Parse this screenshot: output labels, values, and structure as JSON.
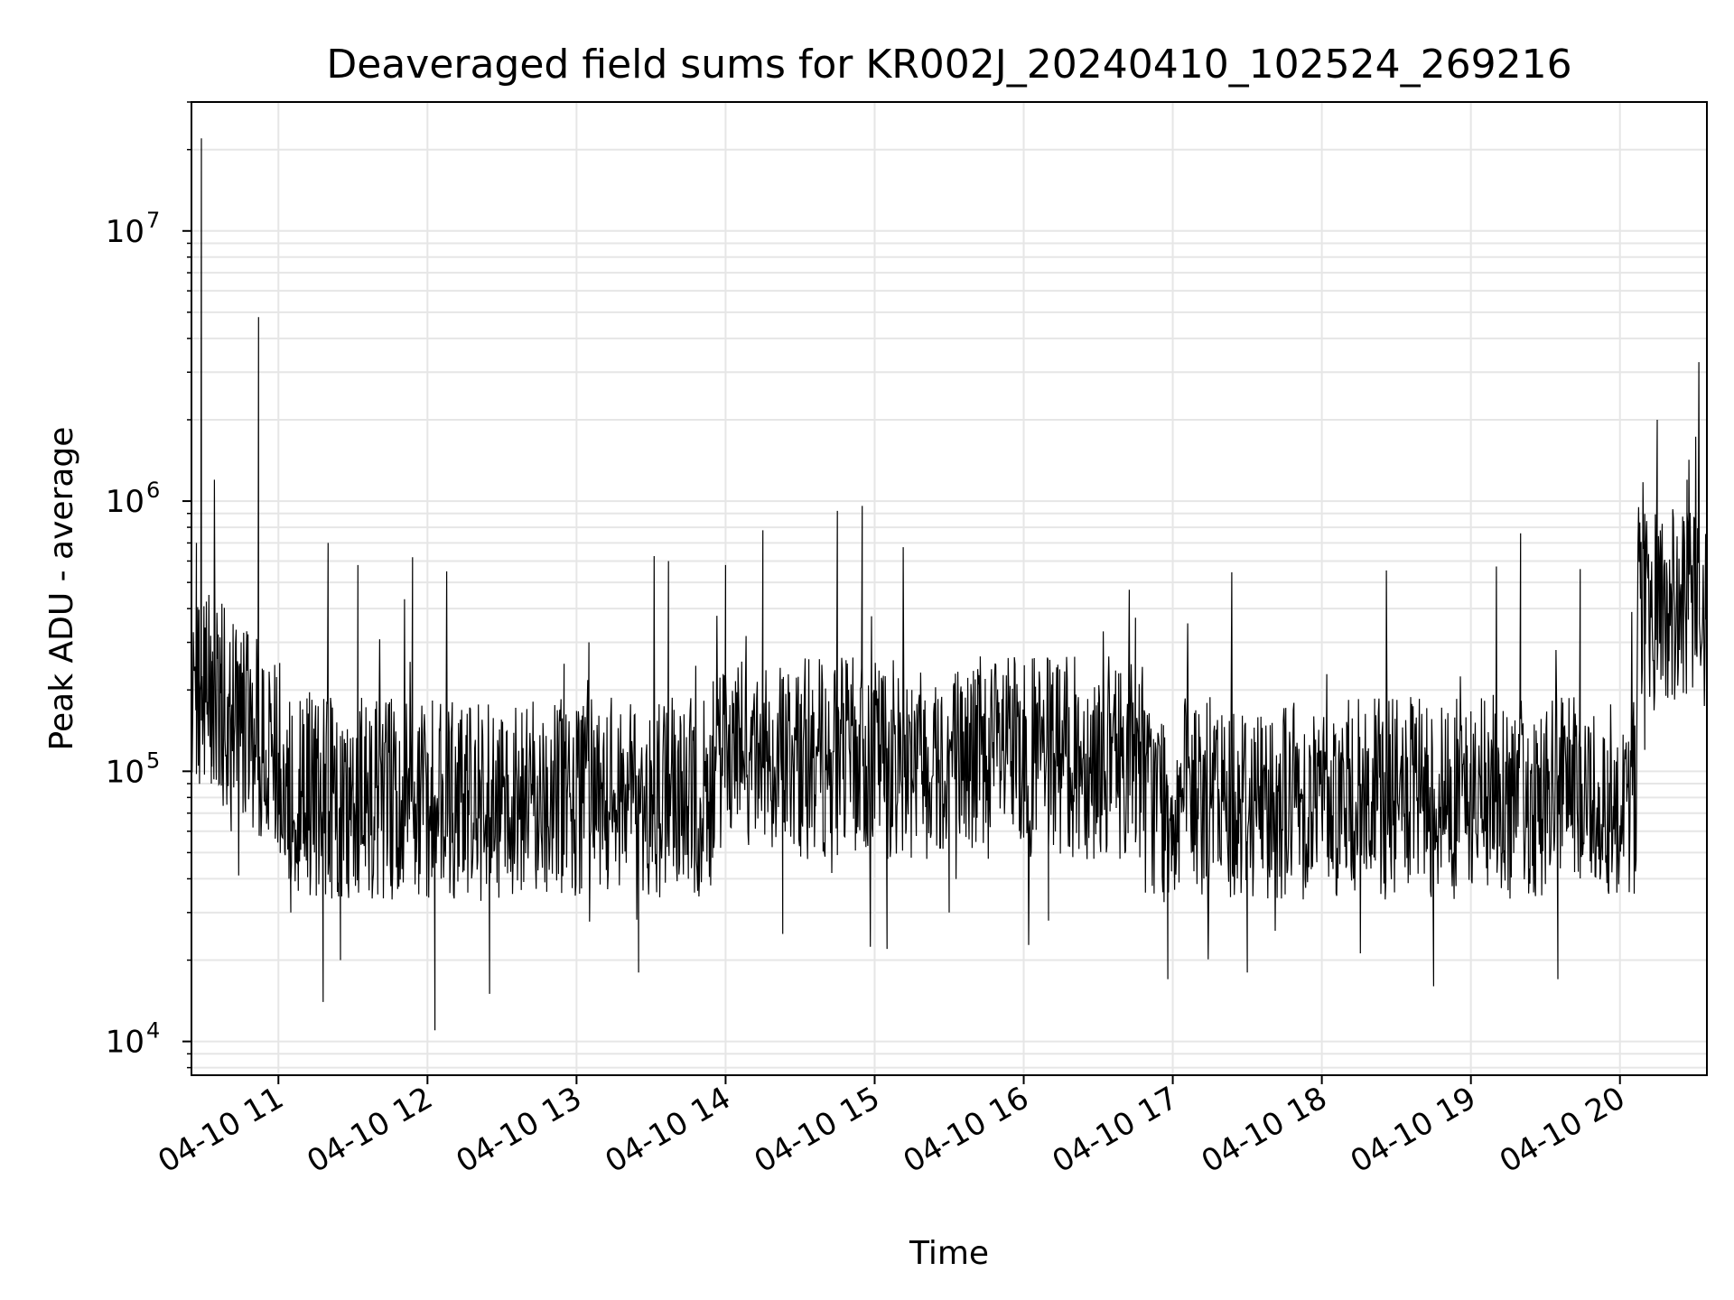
{
  "chart_data": {
    "type": "line",
    "title": "Deaveraged field sums for KR002J_20240410_102524_269216",
    "xlabel": "Time",
    "ylabel": "Peak ADU - average",
    "yscale": "log",
    "grid": true,
    "line_color": "#000000",
    "grid_color": "#e6e6e6",
    "xlim": [
      "2024-04-10 10:25",
      "2024-04-10 20:35"
    ],
    "ylim": [
      7500,
      30000000
    ],
    "x_ticks": [
      {
        "t": "2024-04-10 11:00",
        "label": "04-10 11"
      },
      {
        "t": "2024-04-10 12:00",
        "label": "04-10 12"
      },
      {
        "t": "2024-04-10 13:00",
        "label": "04-10 13"
      },
      {
        "t": "2024-04-10 14:00",
        "label": "04-10 14"
      },
      {
        "t": "2024-04-10 15:00",
        "label": "04-10 15"
      },
      {
        "t": "2024-04-10 16:00",
        "label": "04-10 16"
      },
      {
        "t": "2024-04-10 17:00",
        "label": "04-10 17"
      },
      {
        "t": "2024-04-10 18:00",
        "label": "04-10 18"
      },
      {
        "t": "2024-04-10 19:00",
        "label": "04-10 19"
      },
      {
        "t": "2024-04-10 20:00",
        "label": "04-10 20"
      }
    ],
    "y_ticks": [
      {
        "value": 10000,
        "base": "10",
        "exp": "4"
      },
      {
        "value": 100000,
        "base": "10",
        "exp": "5"
      },
      {
        "value": 1000000,
        "base": "10",
        "exp": "6"
      },
      {
        "value": 10000000,
        "base": "10",
        "exp": "7"
      }
    ],
    "series": [
      {
        "points": [
          [
            "2024-04-10 10:25",
            180000
          ],
          [
            "2024-04-10 10:27",
            700000
          ],
          [
            "2024-04-10 10:29",
            22000000
          ],
          [
            "2024-04-10 10:31",
            400000
          ],
          [
            "2024-04-10 10:33",
            90000
          ],
          [
            "2024-04-10 10:37",
            250000
          ],
          [
            "2024-04-10 10:41",
            60000
          ],
          [
            "2024-04-10 10:45",
            300000
          ],
          [
            "2024-04-10 10:49",
            130000
          ],
          [
            "2024-04-10 10:52",
            4800000
          ],
          [
            "2024-04-10 10:55",
            120000
          ],
          [
            "2024-04-10 11:00",
            80000
          ],
          [
            "2024-04-10 11:05",
            30000
          ],
          [
            "2024-04-10 11:12",
            160000
          ],
          [
            "2024-04-10 11:18",
            14000
          ],
          [
            "2024-04-10 11:20",
            700000
          ],
          [
            "2024-04-10 11:25",
            20000
          ],
          [
            "2024-04-10 11:32",
            580000
          ],
          [
            "2024-04-10 11:40",
            35000
          ],
          [
            "2024-04-10 11:54",
            620000
          ],
          [
            "2024-04-10 12:03",
            11000
          ],
          [
            "2024-04-10 12:10",
            180000
          ],
          [
            "2024-04-10 12:25",
            15000
          ],
          [
            "2024-04-10 12:40",
            170000
          ],
          [
            "2024-04-10 12:55",
            250000
          ],
          [
            "2024-04-10 13:05",
            300000
          ],
          [
            "2024-04-10 13:25",
            18000
          ],
          [
            "2024-04-10 13:37",
            600000
          ],
          [
            "2024-04-10 13:45",
            40000
          ],
          [
            "2024-04-10 14:00",
            580000
          ],
          [
            "2024-04-10 14:15",
            780000
          ],
          [
            "2024-04-10 14:23",
            25000
          ],
          [
            "2024-04-10 14:35",
            200000
          ],
          [
            "2024-04-10 14:45",
            920000
          ],
          [
            "2024-04-10 14:55",
            960000
          ],
          [
            "2024-04-10 15:05",
            22000
          ],
          [
            "2024-04-10 15:15",
            200000
          ],
          [
            "2024-04-10 15:30",
            30000
          ],
          [
            "2024-04-10 15:50",
            180000
          ],
          [
            "2024-04-10 16:10",
            28000
          ],
          [
            "2024-04-10 16:30",
            180000
          ],
          [
            "2024-04-10 16:45",
            370000
          ],
          [
            "2024-04-10 16:58",
            17000
          ],
          [
            "2024-04-10 17:15",
            90000
          ],
          [
            "2024-04-10 17:30",
            18000
          ],
          [
            "2024-04-10 17:50",
            110000
          ],
          [
            "2024-04-10 18:10",
            45000
          ],
          [
            "2024-04-10 18:30",
            120000
          ],
          [
            "2024-04-10 18:45",
            16000
          ],
          [
            "2024-04-10 19:00",
            90000
          ],
          [
            "2024-04-10 19:20",
            760000
          ],
          [
            "2024-04-10 19:35",
            17000
          ],
          [
            "2024-04-10 19:44",
            560000
          ],
          [
            "2024-04-10 19:55",
            80000
          ],
          [
            "2024-04-10 20:10",
            120000
          ],
          [
            "2024-04-10 20:15",
            2000000
          ],
          [
            "2024-04-10 20:22",
            400000
          ],
          [
            "2024-04-10 20:27",
            1200000
          ],
          [
            "2024-04-10 20:35",
            500000
          ]
        ]
      }
    ]
  }
}
